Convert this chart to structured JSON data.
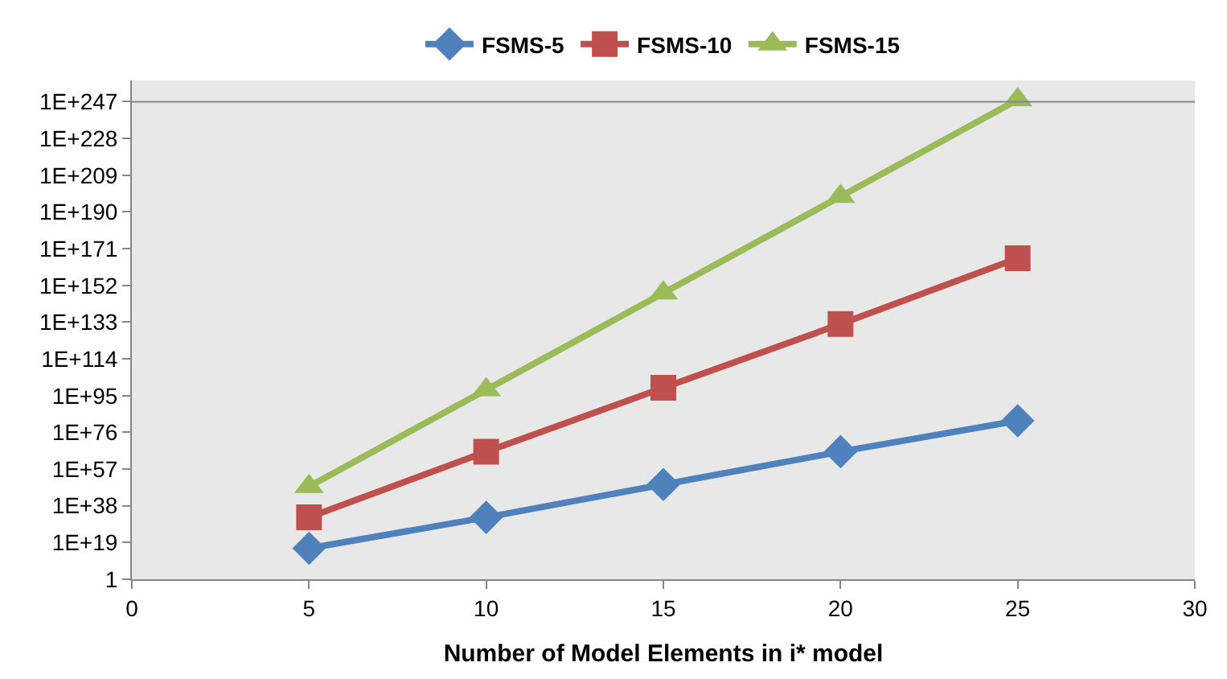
{
  "chart_data": {
    "type": "line",
    "xlabel": "Number of Model Elements in i* model",
    "x": [
      5,
      10,
      15,
      20,
      25
    ],
    "series": [
      {
        "name": "FSMS-5",
        "color": "#4f81bd",
        "marker": "diamond",
        "values": [
          1e+16,
          1e+32,
          1e+49,
          1e+66,
          1e+82
        ]
      },
      {
        "name": "FSMS-10",
        "color": "#c0504d",
        "marker": "square",
        "values": [
          1e+32,
          1e+66,
          1e+99,
          1e+132,
          1e+166
        ]
      },
      {
        "name": "FSMS-15",
        "color": "#9bbb59",
        "marker": "triangle",
        "values": [
          1e+48,
          1e+98,
          1e+148,
          1e+198,
          1e+248
        ]
      }
    ],
    "log": "y",
    "grid": false,
    "legend": "top",
    "xlim": [
      0,
      30
    ],
    "xticks": [
      0,
      5,
      10,
      15,
      20,
      25,
      30
    ],
    "ylim": [
      1,
      1e+258
    ],
    "yticks": [
      1,
      {
        "value": 1e+19,
        "label": "1E+19"
      },
      {
        "value": 1e+38,
        "label": "1E+38"
      },
      {
        "value": 1e+57,
        "label": "1E+57"
      },
      {
        "value": 1e+76,
        "label": "1E+76"
      },
      {
        "value": 1e+95,
        "label": "1E+95"
      },
      {
        "value": 1e+114,
        "label": "1E+114"
      },
      {
        "value": 1e+133,
        "label": "1E+133"
      },
      {
        "value": 1e+152,
        "label": "1E+152"
      },
      {
        "value": 1e+171,
        "label": "1E+171"
      },
      {
        "value": 1e+190,
        "label": "1E+190"
      },
      {
        "value": 1e+209,
        "label": "1E+209"
      },
      {
        "value": 1e+228,
        "label": "1E+228"
      },
      {
        "value": 1e+247,
        "label": "1E+247"
      }
    ],
    "ref_lines": [
      {
        "axis": "y",
        "value": 1e+247,
        "label": null,
        "color": "#868686"
      }
    ]
  }
}
